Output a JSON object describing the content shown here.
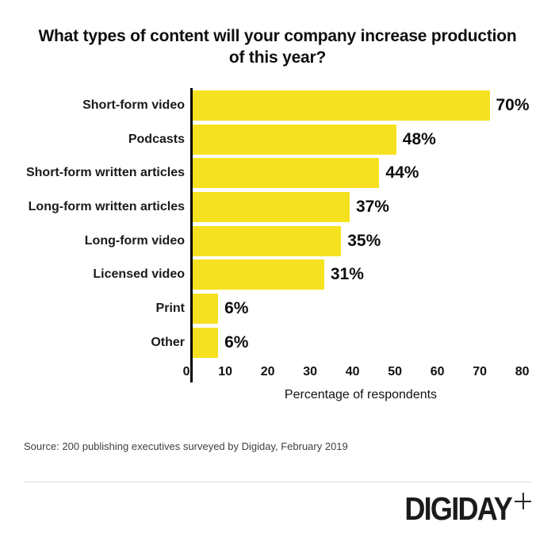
{
  "chart_data": {
    "type": "bar",
    "orientation": "horizontal",
    "title": "What types of content will your company increase production of this year?",
    "categories": [
      "Short-form video",
      "Podcasts",
      "Short-form written articles",
      "Long-form written articles",
      "Long-form video",
      "Licensed video",
      "Print",
      "Other"
    ],
    "values": [
      70,
      48,
      44,
      37,
      35,
      31,
      6,
      6
    ],
    "value_labels": [
      "70%",
      "48%",
      "44%",
      "37%",
      "35%",
      "31%",
      "6%",
      "6%"
    ],
    "xlabel": "Percentage of respondents",
    "xlim": [
      0,
      80
    ],
    "xticks": [
      0,
      10,
      20,
      30,
      40,
      50,
      60,
      70,
      80
    ],
    "grid": false,
    "legend": false,
    "bar_color": "#F6E120",
    "axis_color": "#000000"
  },
  "source": "Source: 200 publishing executives surveyed by Digiday, February 2019",
  "footer": {
    "logo_text": "DIGIDAY",
    "plus_icon": "plus"
  },
  "colors": {
    "bar": "#F6E120",
    "title_text": "#0f0f0f",
    "source_text": "#3f3f3f",
    "divider": "#dbdbdb",
    "logo": "#1c1a1b"
  }
}
